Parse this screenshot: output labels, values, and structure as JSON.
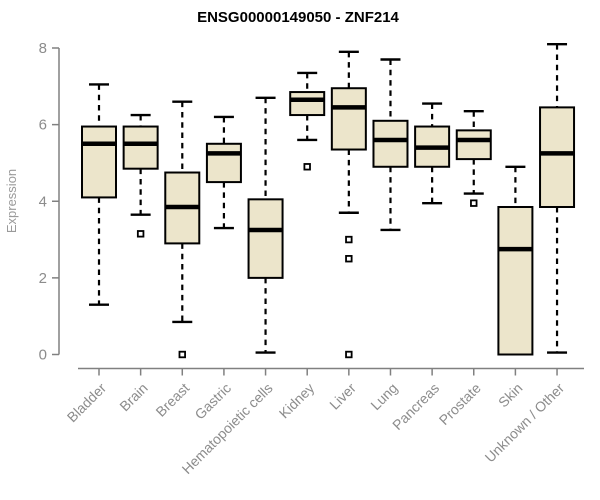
{
  "window": {
    "background": "#ffffff"
  },
  "chart_data": {
    "type": "boxplot",
    "title": "ENSG00000149050 - ZNF214",
    "xlabel": "",
    "ylabel": "Expression",
    "ylim": [
      0,
      8
    ],
    "yticks": [
      0,
      2,
      4,
      6,
      8
    ],
    "grid": false,
    "legend": "none",
    "categories": [
      "Bladder",
      "Brain",
      "Breast",
      "Gastric",
      "Hematopoietic cells",
      "Kidney",
      "Liver",
      "Lung",
      "Pancreas",
      "Prostate",
      "Skin",
      "Unknown / Other"
    ],
    "boxes": [
      {
        "category": "Bladder",
        "whisker_low": 1.3,
        "q1": 4.1,
        "median": 5.5,
        "q3": 5.95,
        "whisker_high": 7.05,
        "outliers": []
      },
      {
        "category": "Brain",
        "whisker_low": 3.65,
        "q1": 4.85,
        "median": 5.5,
        "q3": 5.95,
        "whisker_high": 6.25,
        "outliers": [
          3.15
        ]
      },
      {
        "category": "Breast",
        "whisker_low": 0.85,
        "q1": 2.9,
        "median": 3.85,
        "q3": 4.75,
        "whisker_high": 6.6,
        "outliers": [
          0.0
        ]
      },
      {
        "category": "Gastric",
        "whisker_low": 3.3,
        "q1": 4.5,
        "median": 5.25,
        "q3": 5.5,
        "whisker_high": 6.2,
        "outliers": []
      },
      {
        "category": "Hematopoietic cells",
        "whisker_low": 0.05,
        "q1": 2.0,
        "median": 3.25,
        "q3": 4.05,
        "whisker_high": 6.7,
        "outliers": []
      },
      {
        "category": "Kidney",
        "whisker_low": 5.6,
        "q1": 6.25,
        "median": 6.65,
        "q3": 6.85,
        "whisker_high": 7.35,
        "outliers": [
          4.9
        ]
      },
      {
        "category": "Liver",
        "whisker_low": 3.7,
        "q1": 5.35,
        "median": 6.45,
        "q3": 6.95,
        "whisker_high": 7.9,
        "outliers": [
          3.0,
          2.5,
          0.0
        ]
      },
      {
        "category": "Lung",
        "whisker_low": 3.25,
        "q1": 4.9,
        "median": 5.6,
        "q3": 6.1,
        "whisker_high": 7.7,
        "outliers": []
      },
      {
        "category": "Pancreas",
        "whisker_low": 3.95,
        "q1": 4.9,
        "median": 5.4,
        "q3": 5.95,
        "whisker_high": 6.55,
        "outliers": []
      },
      {
        "category": "Prostate",
        "whisker_low": 4.2,
        "q1": 5.1,
        "median": 5.6,
        "q3": 5.85,
        "whisker_high": 6.35,
        "outliers": [
          3.95
        ]
      },
      {
        "category": "Skin",
        "whisker_low": 0.0,
        "q1": 0.0,
        "median": 2.75,
        "q3": 3.85,
        "whisker_high": 4.9,
        "outliers": []
      },
      {
        "category": "Unknown / Other",
        "whisker_low": 0.05,
        "q1": 3.85,
        "median": 5.25,
        "q3": 6.45,
        "whisker_high": 8.1,
        "outliers": []
      }
    ],
    "colors": {
      "box_fill": "#ece5cb",
      "box_stroke": "#000000",
      "median": "#000000",
      "whisker": "#000000",
      "outlier_stroke": "#000000",
      "axis": "#808080",
      "tick_label": "#8c8c8c",
      "axis_label": "#9a9a9a",
      "title": "#000000",
      "background": "#ffffff"
    }
  }
}
